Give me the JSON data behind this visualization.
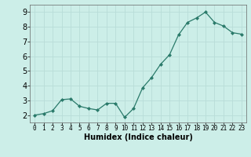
{
  "x_data": [
    0,
    1,
    2,
    3,
    4,
    5,
    6,
    7,
    8,
    9,
    10,
    11,
    12,
    13,
    14,
    15,
    16,
    17,
    18,
    19,
    20,
    21,
    22,
    23
  ],
  "y_data": [
    2.0,
    2.1,
    2.3,
    3.05,
    3.1,
    2.6,
    2.45,
    2.35,
    2.8,
    2.8,
    1.85,
    2.45,
    3.85,
    4.55,
    5.45,
    6.1,
    7.45,
    8.3,
    8.6,
    9.0,
    8.3,
    8.05,
    7.6,
    7.5
  ],
  "line_color": "#2a7a6a",
  "marker": "D",
  "marker_size": 2.0,
  "bg_color": "#cceee8",
  "grid_color": "#b8ddd8",
  "xlabel": "Humidex (Indice chaleur)",
  "xlabel_fontsize": 7,
  "ylim": [
    1.5,
    9.5
  ],
  "xlim": [
    -0.5,
    23.5
  ],
  "yticks": [
    2,
    3,
    4,
    5,
    6,
    7,
    8,
    9
  ],
  "xticks": [
    0,
    1,
    2,
    3,
    4,
    5,
    6,
    7,
    8,
    9,
    10,
    11,
    12,
    13,
    14,
    15,
    16,
    17,
    18,
    19,
    20,
    21,
    22,
    23
  ],
  "tick_fontsize": 5.5,
  "ytick_fontsize": 7.0
}
